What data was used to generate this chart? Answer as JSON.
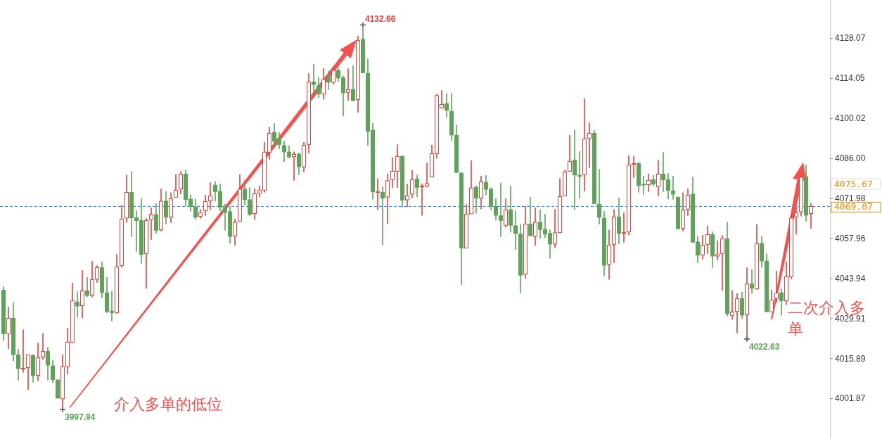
{
  "chart_data": {
    "type": "candlestick",
    "categories": [
      null,
      null,
      null,
      null,
      null,
      null,
      null,
      null,
      null,
      null,
      null,
      null,
      null,
      null,
      null,
      null,
      null,
      null,
      null,
      null,
      null,
      null,
      null,
      null,
      null,
      null,
      null,
      null,
      null,
      null,
      null,
      null,
      null,
      null,
      null,
      null,
      null,
      null,
      null,
      null,
      null,
      null,
      null,
      null,
      null,
      null,
      null,
      null,
      null,
      null,
      null,
      null,
      null,
      null,
      null,
      null,
      null,
      null,
      null,
      null,
      null,
      null,
      null,
      null,
      null,
      null,
      null,
      null,
      null,
      null,
      null,
      null,
      null,
      null,
      null,
      null,
      null,
      null,
      null,
      null,
      null,
      null,
      null,
      null,
      null,
      null,
      null,
      null,
      null,
      null,
      null,
      null,
      null,
      null,
      null,
      null,
      null,
      null,
      null,
      null,
      null,
      null,
      null,
      null,
      null,
      null,
      null,
      null,
      null,
      null,
      null,
      null,
      null,
      null,
      null,
      null,
      null,
      null,
      null,
      null,
      null,
      null,
      null,
      null,
      null,
      null,
      null,
      null,
      null,
      null,
      null,
      null,
      null,
      null,
      null,
      null,
      null,
      null,
      null,
      null,
      null,
      null,
      null,
      null,
      null,
      null,
      null,
      null,
      null,
      null,
      null,
      null,
      null,
      null,
      null,
      null,
      null,
      null,
      null,
      null,
      null,
      null,
      null,
      null,
      null
    ],
    "ohlc": [
      [
        4039.7,
        4041.0,
        4022.1,
        4024.5
      ],
      [
        4024.5,
        4033.9,
        4019.1,
        4029.9
      ],
      [
        4029.9,
        4035.4,
        4014.8,
        4017.2
      ],
      [
        4017.1,
        4019.1,
        4008.1,
        4012.3
      ],
      [
        4012.2,
        4026.0,
        4010.9,
        4012.4
      ],
      [
        4012.6,
        4017.2,
        4004.7,
        4017.1
      ],
      [
        4016.8,
        4017.3,
        4007.4,
        4009.8
      ],
      [
        4009.9,
        4021.3,
        4007.9,
        4016.1
      ],
      [
        4016.3,
        4024.7,
        4015.3,
        4018.3
      ],
      [
        4018.3,
        4019.8,
        4008.1,
        4013.5
      ],
      [
        4013.2,
        4015.3,
        4007.2,
        4008.4
      ],
      [
        4008.3,
        4008.3,
        4001.9,
        4001.9
      ],
      [
        4001.7,
        4017.2,
        3997.94,
        4012.9
      ],
      [
        4013.0,
        4026.5,
        4010.3,
        4021.5
      ],
      [
        4021.4,
        4042.3,
        4021.2,
        4036.0
      ],
      [
        4035.6,
        4039.3,
        4030.2,
        4034.2
      ],
      [
        4034.3,
        4046.7,
        4030.0,
        4039.5
      ],
      [
        4039.5,
        4044.3,
        4037.4,
        4037.9
      ],
      [
        4038.0,
        4049.9,
        4037.2,
        4043.4
      ],
      [
        4043.6,
        4048.4,
        4042.4,
        4047.6
      ],
      [
        4047.6,
        4049.8,
        4036.9,
        4038.9
      ],
      [
        4038.8,
        4044.4,
        4031.7,
        4032.3
      ],
      [
        4032.4,
        4039.5,
        4028.8,
        4031.9
      ],
      [
        4031.9,
        4052.4,
        4031.4,
        4047.9
      ],
      [
        4048.4,
        4069.7,
        4047.7,
        4064.6
      ],
      [
        4065.0,
        4080.2,
        4063.3,
        4074.0
      ],
      [
        4074.0,
        4081.4,
        4058.4,
        4065.1
      ],
      [
        4065.1,
        4067.7,
        4053.2,
        4064.1
      ],
      [
        4064.1,
        4071.9,
        4049.1,
        4052.3
      ],
      [
        4052.6,
        4065.0,
        4040.3,
        4064.1
      ],
      [
        4064.4,
        4068.7,
        4057.4,
        4066.2
      ],
      [
        4066.2,
        4070.1,
        4059.6,
        4060.7
      ],
      [
        4060.9,
        4075.3,
        4060.4,
        4070.9
      ],
      [
        4070.9,
        4074.3,
        4062.8,
        4065.3
      ],
      [
        4065.3,
        4074.0,
        4063.3,
        4071.8
      ],
      [
        4072.3,
        4080.4,
        4072.3,
        4074.7
      ],
      [
        4075.2,
        4081.4,
        4073.4,
        4080.4
      ],
      [
        4080.4,
        4082.0,
        4069.2,
        4071.5
      ],
      [
        4071.6,
        4073.2,
        4067.3,
        4069.0
      ],
      [
        4068.8,
        4071.8,
        4064.5,
        4065.3
      ],
      [
        4065.6,
        4068.1,
        4064.8,
        4066.9
      ],
      [
        4067.6,
        4073.1,
        4065.8,
        4070.8
      ],
      [
        4071.0,
        4077.5,
        4067.8,
        4072.8
      ],
      [
        4076.5,
        4077.9,
        4070.9,
        4074.3
      ],
      [
        4074.3,
        4077.0,
        4067.4,
        4068.8
      ],
      [
        4068.7,
        4069.9,
        4060.6,
        4067.0
      ],
      [
        4067.2,
        4069.0,
        4056.1,
        4058.6
      ],
      [
        4058.7,
        4064.7,
        4055.4,
        4063.5
      ],
      [
        4063.9,
        4080.3,
        4063.9,
        4075.1
      ],
      [
        4075.1,
        4078.3,
        4069.5,
        4071.5
      ],
      [
        4071.4,
        4075.8,
        4065.8,
        4066.3
      ],
      [
        4066.6,
        4075.4,
        4064.3,
        4073.5
      ],
      [
        4073.7,
        4076.4,
        4072.2,
        4074.6
      ],
      [
        4074.8,
        4091.7,
        4073.9,
        4088.1
      ],
      [
        4088.1,
        4097.0,
        4085.5,
        4094.7
      ],
      [
        4095.0,
        4098.2,
        4089.6,
        4091.9
      ],
      [
        4092.9,
        4095.0,
        4089.2,
        4090.8
      ],
      [
        4090.4,
        4092.1,
        4084.7,
        4088.2
      ],
      [
        4088.1,
        4090.5,
        4085.9,
        4086.5
      ],
      [
        4086.5,
        4088.3,
        4078.1,
        4087.3
      ],
      [
        4087.4,
        4088.0,
        4080.1,
        4083.0
      ],
      [
        4082.9,
        4091.6,
        4081.1,
        4090.5
      ],
      [
        4090.8,
        4115.7,
        4087.7,
        4112.6
      ],
      [
        4112.7,
        4119.0,
        4108.5,
        4111.8
      ],
      [
        4111.4,
        4114.4,
        4107.0,
        4108.5
      ],
      [
        4108.5,
        4117.5,
        4106.5,
        4113.6
      ],
      [
        4114.3,
        4116.6,
        4109.9,
        4112.6
      ],
      [
        4112.6,
        4117.9,
        4111.8,
        4116.7
      ],
      [
        4116.7,
        4117.7,
        4112.8,
        4114.1
      ],
      [
        4114.1,
        4114.9,
        4100.7,
        4108.9
      ],
      [
        4109.1,
        4117.4,
        4106.1,
        4110.0
      ],
      [
        4110.0,
        4118.5,
        4105.9,
        4106.2
      ],
      [
        4106.5,
        4128.8,
        4101.9,
        4127.2
      ],
      [
        4127.6,
        4132.66,
        4115.9,
        4115.9
      ],
      [
        4115.7,
        4120.8,
        4090.3,
        4095.4
      ],
      [
        4095.8,
        4098.3,
        4071.5,
        4074.2
      ],
      [
        4074.0,
        4078.9,
        4067.8,
        4074.3
      ],
      [
        4074.0,
        4076.0,
        4055.5,
        4072.0
      ],
      [
        4072.4,
        4080.6,
        4062.9,
        4078.1
      ],
      [
        4078.5,
        4086.3,
        4075.6,
        4081.4
      ],
      [
        4081.4,
        4090.8,
        4075.6,
        4086.6
      ],
      [
        4086.6,
        4086.9,
        4068.9,
        4071.3
      ],
      [
        4071.4,
        4077.0,
        4068.8,
        4072.8
      ],
      [
        4073.4,
        4081.8,
        4072.0,
        4078.4
      ],
      [
        4078.7,
        4080.2,
        4072.4,
        4075.8
      ],
      [
        4076.0,
        4077.1,
        4065.9,
        4076.2
      ],
      [
        4076.2,
        4084.4,
        4075.9,
        4077.1
      ],
      [
        4079.4,
        4090.6,
        4079.4,
        4087.6
      ],
      [
        4087.6,
        4108.5,
        4085.8,
        4107.9
      ],
      [
        4103.6,
        4109.8,
        4103.3,
        4104.8
      ],
      [
        4105.1,
        4108.7,
        4100.3,
        4102.8
      ],
      [
        4102.4,
        4108.8,
        4092.1,
        4094.1
      ],
      [
        4094.0,
        4097.7,
        4080.8,
        4081.0
      ],
      [
        4080.7,
        4081.2,
        4041.6,
        4054.5
      ],
      [
        4054.5,
        4069.9,
        4054.5,
        4066.4
      ],
      [
        4066.5,
        4085.2,
        4066.5,
        4075.5
      ],
      [
        4075.8,
        4076.3,
        4066.6,
        4072.0
      ],
      [
        4072.0,
        4079.8,
        4068.1,
        4077.7
      ],
      [
        4077.5,
        4080.0,
        4073.0,
        4075.1
      ],
      [
        4075.1,
        4075.7,
        4067.8,
        4069.2
      ],
      [
        4069.1,
        4071.9,
        4064.2,
        4066.0
      ],
      [
        4065.8,
        4077.3,
        4058.4,
        4064.2
      ],
      [
        4062.5,
        4071.9,
        4061.7,
        4067.9
      ],
      [
        4067.9,
        4076.3,
        4060.0,
        4062.5
      ],
      [
        4062.3,
        4067.6,
        4053.9,
        4059.6
      ],
      [
        4059.4,
        4062.9,
        4038.7,
        4045.0
      ],
      [
        4045.4,
        4069.2,
        4043.8,
        4062.9
      ],
      [
        4062.8,
        4072.4,
        4058.8,
        4058.8
      ],
      [
        4058.6,
        4068.7,
        4055.4,
        4063.5
      ],
      [
        4063.5,
        4068.0,
        4057.8,
        4061.0
      ],
      [
        4061.0,
        4066.5,
        4058.0,
        4059.4
      ],
      [
        4059.6,
        4060.9,
        4050.8,
        4055.9
      ],
      [
        4055.9,
        4068.1,
        4054.5,
        4059.8
      ],
      [
        4059.9,
        4078.9,
        4059.9,
        4072.5
      ],
      [
        4072.8,
        4081.8,
        4072.8,
        4081.2
      ],
      [
        4081.4,
        4094.1,
        4081.4,
        4084.8
      ],
      [
        4085.3,
        4096.0,
        4067.8,
        4080.1
      ],
      [
        4080.0,
        4088.4,
        4071.9,
        4079.6
      ],
      [
        4080.2,
        4106.9,
        4074.4,
        4092.7
      ],
      [
        4093.0,
        4098.5,
        4082.6,
        4094.7
      ],
      [
        4094.7,
        4095.8,
        4070.0,
        4070.0
      ],
      [
        4069.8,
        4082.2,
        4062.8,
        4065.3
      ],
      [
        4064.9,
        4067.4,
        4044.6,
        4048.5
      ],
      [
        4048.8,
        4060.9,
        4043.4,
        4055.5
      ],
      [
        4055.8,
        4068.1,
        4049.3,
        4065.4
      ],
      [
        4065.4,
        4072.1,
        4055.9,
        4059.6
      ],
      [
        4059.6,
        4066.9,
        4056.4,
        4059.9
      ],
      [
        4060.2,
        4086.9,
        4059.0,
        4083.6
      ],
      [
        4083.8,
        4086.7,
        4079.1,
        4084.1
      ],
      [
        4084.1,
        4084.7,
        4073.9,
        4076.4
      ],
      [
        4076.8,
        4079.8,
        4073.2,
        4076.6
      ],
      [
        4076.7,
        4080.6,
        4074.2,
        4078.2
      ],
      [
        4078.4,
        4080.0,
        4076.2,
        4076.9
      ],
      [
        4076.0,
        4085.3,
        4072.7,
        4080.4
      ],
      [
        4080.4,
        4088.1,
        4074.2,
        4078.4
      ],
      [
        4078.4,
        4080.7,
        4071.5,
        4074.7
      ],
      [
        4074.5,
        4079.8,
        4071.5,
        4073.4
      ],
      [
        4072.3,
        4072.5,
        4061.0,
        4061.3
      ],
      [
        4061.4,
        4074.0,
        4060.4,
        4067.8
      ],
      [
        4068.1,
        4075.3,
        4065.8,
        4073.0
      ],
      [
        4073.4,
        4079.5,
        4056.3,
        4056.6
      ],
      [
        4056.6,
        4058.8,
        4049.2,
        4052.0
      ],
      [
        4052.1,
        4059.1,
        4050.5,
        4055.5
      ],
      [
        4055.8,
        4062.3,
        4052.5,
        4059.2
      ],
      [
        4059.2,
        4060.3,
        4047.6,
        4051.7
      ],
      [
        4051.7,
        4057.1,
        4050.2,
        4052.2
      ],
      [
        4052.6,
        4059.0,
        4039.6,
        4057.7
      ],
      [
        4057.7,
        4063.7,
        4030.6,
        4031.5
      ],
      [
        4030.9,
        4039.7,
        4029.4,
        4032.1
      ],
      [
        4032.3,
        4038.7,
        4024.7,
        4036.8
      ],
      [
        4036.8,
        4039.1,
        4029.6,
        4031.0
      ],
      [
        4031.1,
        4047.7,
        4022.63,
        4041.9
      ],
      [
        4041.9,
        4047.0,
        4038.5,
        4040.5
      ],
      [
        4040.2,
        4062.9,
        4039.9,
        4056.1
      ],
      [
        4056.1,
        4058.8,
        4047.7,
        4050.0
      ],
      [
        4049.9,
        4052.6,
        4032.2,
        4032.2
      ],
      [
        4032.2,
        4039.9,
        4032.2,
        4036.2
      ],
      [
        4036.9,
        4046.5,
        4035.4,
        4038.7
      ],
      [
        4038.8,
        4040.3,
        4030.9,
        4036.0
      ],
      [
        4036.0,
        4049.8,
        4034.6,
        4044.4
      ],
      [
        4044.4,
        4066.5,
        4043.6,
        4065.0
      ],
      [
        4065.4,
        4069.0,
        4059.2,
        4066.8
      ],
      [
        4067.2,
        4079.9,
        4065.6,
        4079.3
      ],
      [
        4079.5,
        4083.7,
        4063.7,
        4066.0
      ],
      [
        4066.6,
        4070.3,
        4061.3,
        4069.07
      ]
    ],
    "ylim": [
      3987.6,
      4141.4
    ],
    "yticks": [
      4001.87,
      4015.89,
      4029.91,
      4043.94,
      4057.96,
      4071.98,
      {
        "value": 4086,
        "label": "4086.00"
      },
      4100.02,
      4114.05,
      4128.07
    ],
    "grid": false,
    "ref_lines": [
      {
        "axis": "y",
        "value": 4069.07,
        "label": "4069.07",
        "color": "#1a8cff",
        "line_style": "dashed"
      }
    ],
    "annotations": [
      "4132.66",
      "3997.94",
      "4022.63",
      "4075.67",
      "介入多单的低位",
      "二次介入多单"
    ]
  }
}
